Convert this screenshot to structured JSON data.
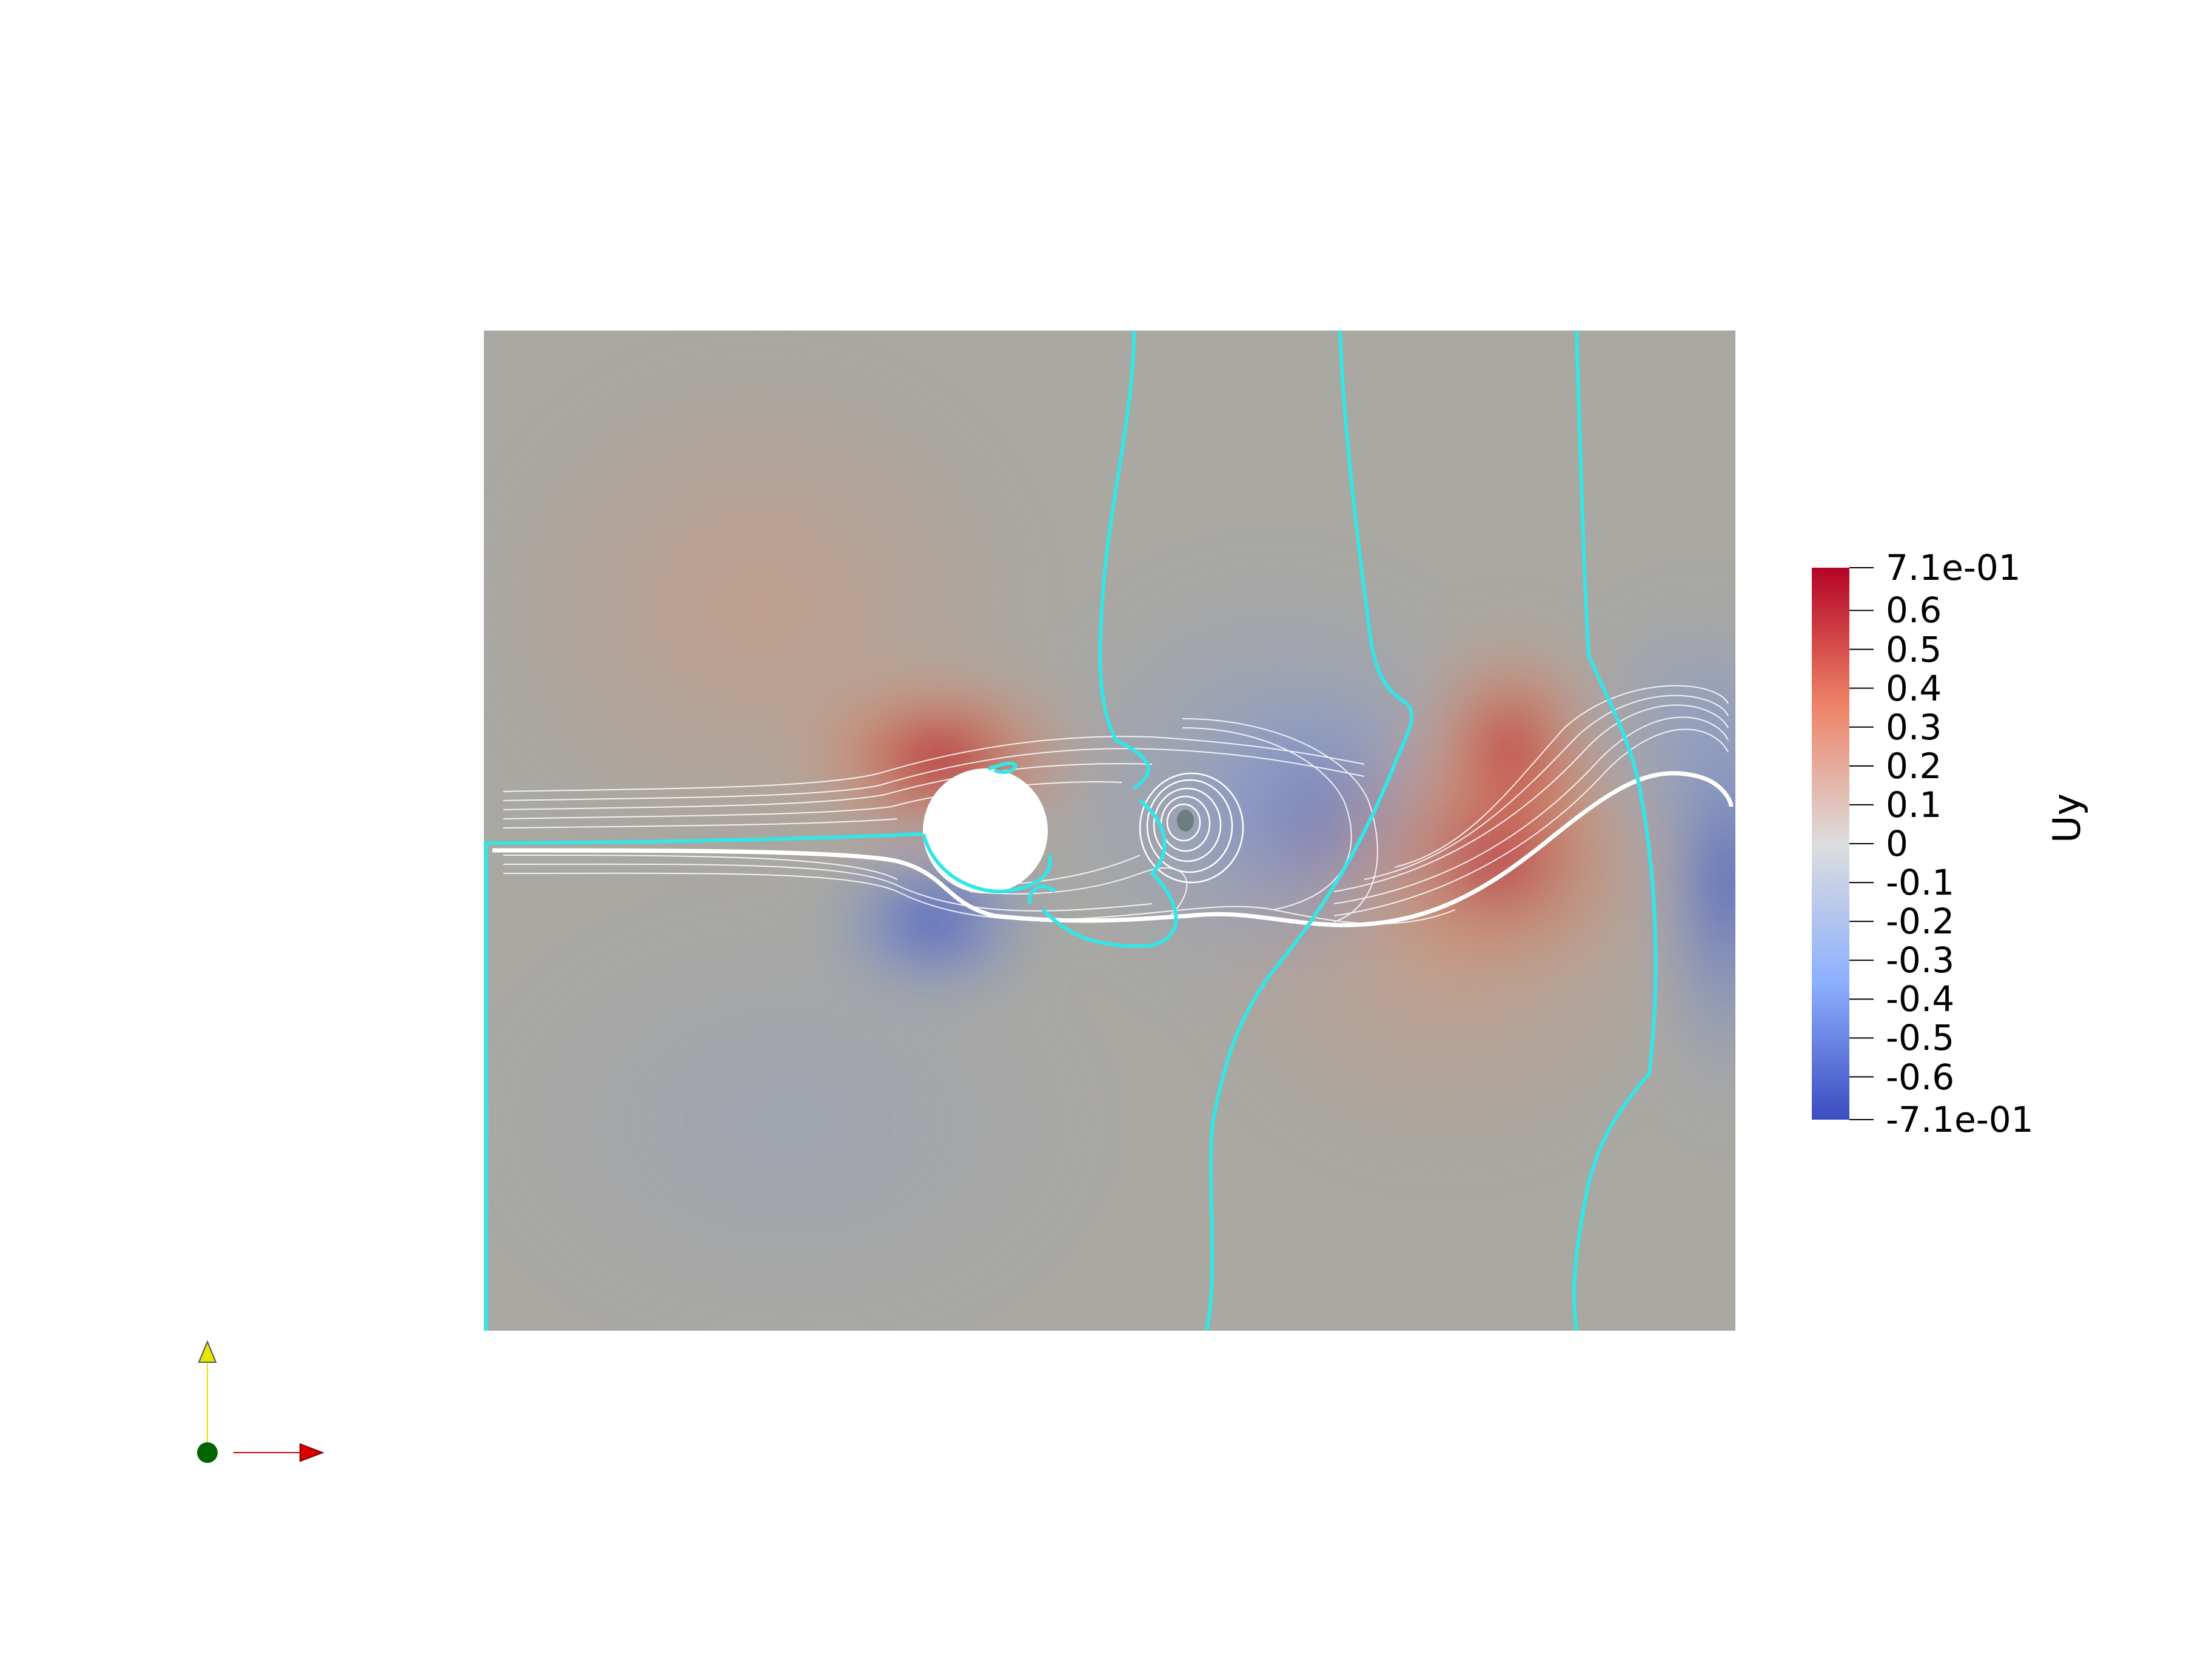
{
  "scene": {
    "field_name": "Uy",
    "colormap": "Cool to Warm",
    "colors": {
      "background": "#ffffff",
      "neutral": "#a8a8a4",
      "warm": "#b40426",
      "cool": "#3b4cc0",
      "contour": "#33e6e6",
      "streamline": "#ffffff",
      "obstacle": "#ffffff"
    }
  },
  "colorbar": {
    "title": "Uy",
    "range": [
      -0.71,
      0.71
    ],
    "ticks": [
      "7.1e-01",
      "0.6",
      "0.5",
      "0.4",
      "0.3",
      "0.2",
      "0.1",
      "0",
      "-0.1",
      "-0.2",
      "-0.3",
      "-0.4",
      "-0.5",
      "-0.6",
      "-7.1e-01"
    ],
    "tick_values": [
      0.71,
      0.6,
      0.5,
      0.4,
      0.3,
      0.2,
      0.1,
      0,
      -0.1,
      -0.2,
      -0.3,
      -0.4,
      -0.5,
      -0.6,
      -0.71
    ]
  },
  "orientation_axes": {
    "x_color": "#cc0000",
    "y_color": "#e6e600",
    "z_color": "#006400"
  }
}
